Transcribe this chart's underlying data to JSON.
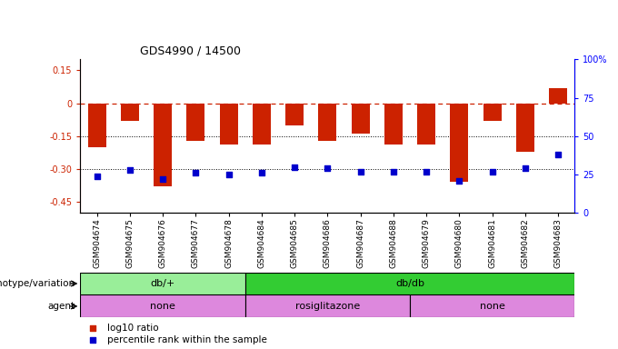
{
  "title": "GDS4990 / 14500",
  "samples": [
    "GSM904674",
    "GSM904675",
    "GSM904676",
    "GSM904677",
    "GSM904678",
    "GSM904684",
    "GSM904685",
    "GSM904686",
    "GSM904687",
    "GSM904688",
    "GSM904679",
    "GSM904680",
    "GSM904681",
    "GSM904682",
    "GSM904683"
  ],
  "log10_ratio": [
    -0.2,
    -0.08,
    -0.38,
    -0.17,
    -0.19,
    -0.19,
    -0.1,
    -0.17,
    -0.14,
    -0.19,
    -0.19,
    -0.36,
    -0.08,
    -0.22,
    0.07
  ],
  "percentile_rank": [
    24,
    28,
    22,
    26,
    25,
    26,
    30,
    29,
    27,
    27,
    27,
    21,
    27,
    29,
    38
  ],
  "ylim_left": [
    -0.5,
    0.2
  ],
  "ylim_right": [
    0,
    100
  ],
  "yticks_left": [
    0.15,
    0.0,
    -0.15,
    -0.3,
    -0.45
  ],
  "ytick_labels_left": [
    "0.15",
    "0",
    "-0.15",
    "-0.30",
    "-0.45"
  ],
  "yticks_right_vals": [
    100,
    75,
    50,
    25,
    0
  ],
  "ytick_labels_right": [
    "100%",
    "75",
    "50",
    "25",
    "0"
  ],
  "bar_color": "#cc2200",
  "dot_color": "#0000cc",
  "bar_width": 0.55,
  "genotype_groups": [
    {
      "label": "db/+",
      "start": 0,
      "end": 5,
      "color": "#99ee99"
    },
    {
      "label": "db/db",
      "start": 5,
      "end": 15,
      "color": "#33cc33"
    }
  ],
  "agent_groups": [
    {
      "label": "none",
      "start": 0,
      "end": 5
    },
    {
      "label": "rosiglitazone",
      "start": 5,
      "end": 10
    },
    {
      "label": "none",
      "start": 10,
      "end": 15
    }
  ],
  "agent_color": "#dd88dd",
  "genotype_label": "genotype/variation",
  "agent_label": "agent"
}
